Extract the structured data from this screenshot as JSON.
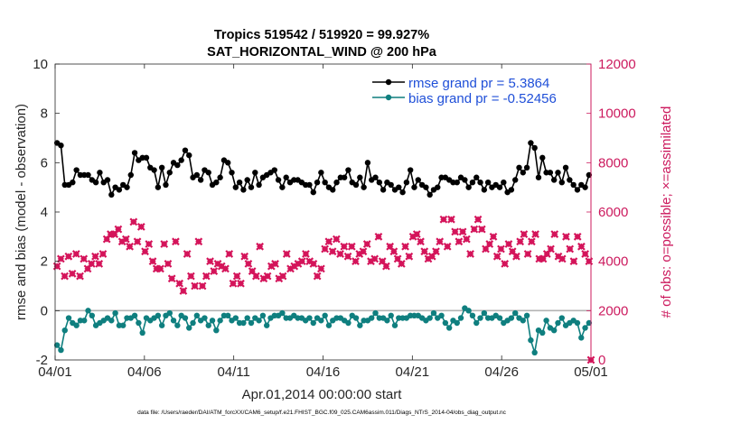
{
  "chart_data": {
    "type": "line",
    "title_line1": "Tropics 519542 / 519920 = 99.927%",
    "title_line2": "SAT_HORIZONTAL_WIND @ 200 hPa",
    "xlabel": "Apr.01,2014 00:00:00 start",
    "ylabel_left": "rmse and bias (model - observation)",
    "ylabel_right": "# of obs: o=possible; ×=assimilated",
    "ylim_left": [
      -2,
      10
    ],
    "ylim_right": [
      0,
      12000
    ],
    "xlim_days": [
      0,
      30
    ],
    "x_tick_labels": [
      "04/01",
      "04/06",
      "04/11",
      "04/16",
      "04/21",
      "04/26",
      "05/01"
    ],
    "y_left_tick_labels": [
      "-2",
      "0",
      "2",
      "4",
      "6",
      "8",
      "10"
    ],
    "y_right_tick_labels": [
      "0",
      "2000",
      "4000",
      "6000",
      "8000",
      "10000",
      "12000"
    ],
    "footer": "data file: /Users/raeder/DAI/ATM_forcXX/CAM6_setup/f.e21.FHIST_BGC.f09_025.CAM6assim.011/Diags_NTrS_2014-04/obs_diag_output.nc",
    "colors": {
      "rmse": "#000000",
      "bias": "#0f7f7f",
      "obs": "#d4145a",
      "axis_right": "#cc1a5e",
      "legend_text": "#1f4fd8",
      "zero_line": "#b3b3b3"
    },
    "series": [
      {
        "name": "rmse grand pr = 5.3864",
        "axis": "left",
        "marker": "dot",
        "values": [
          6.8,
          6.7,
          5.1,
          5.1,
          5.2,
          5.7,
          5.5,
          5.5,
          5.5,
          5.3,
          5.2,
          5.6,
          5.2,
          5.3,
          4.7,
          5.0,
          4.9,
          5.1,
          5.0,
          5.5,
          6.4,
          6.1,
          6.2,
          6.2,
          5.8,
          5.7,
          5.0,
          5.8,
          5.1,
          5.6,
          6.0,
          5.9,
          6.1,
          6.5,
          6.3,
          5.4,
          5.5,
          5.3,
          5.7,
          5.6,
          5.1,
          5.2,
          5.4,
          6.1,
          6.0,
          5.6,
          5.0,
          5.2,
          4.9,
          5.3,
          5.0,
          5.6,
          5.1,
          5.4,
          5.5,
          5.6,
          5.7,
          5.3,
          5.0,
          5.4,
          5.2,
          5.3,
          5.3,
          5.2,
          5.1,
          5.1,
          4.8,
          5.2,
          5.6,
          5.2,
          5.0,
          4.9,
          5.2,
          5.4,
          5.4,
          5.7,
          5.2,
          5.1,
          5.4,
          5.0,
          6.0,
          5.3,
          5.4,
          5.2,
          4.9,
          5.2,
          5.1,
          4.9,
          5.0,
          4.8,
          5.2,
          5.7,
          5.0,
          5.3,
          5.1,
          5.0,
          4.7,
          4.9,
          5.0,
          5.4,
          5.4,
          5.3,
          5.2,
          5.2,
          5.4,
          5.3,
          5.0,
          5.2,
          5.4,
          5.2,
          4.9,
          5.2,
          5.0,
          5.1,
          5.0,
          5.2,
          4.8,
          4.9,
          5.3,
          5.8,
          5.6,
          5.8,
          6.8,
          6.6,
          5.4,
          6.2,
          5.6,
          5.6,
          5.3,
          5.6,
          5.2,
          5.8,
          5.3,
          5.1,
          4.9,
          5.1,
          5.0,
          5.5
        ]
      },
      {
        "name": "bias grand pr = -0.52456",
        "axis": "left",
        "marker": "dot",
        "values": [
          -1.4,
          -1.6,
          -0.8,
          -0.3,
          -0.5,
          -0.6,
          -0.4,
          -0.4,
          0.0,
          -0.2,
          -0.6,
          -0.5,
          -0.4,
          -0.3,
          -0.4,
          -0.1,
          -0.6,
          -0.6,
          -0.3,
          -0.3,
          -0.2,
          -0.5,
          -0.9,
          -0.3,
          -0.4,
          -0.3,
          -0.2,
          -0.6,
          -0.2,
          -0.1,
          -0.4,
          -0.6,
          -0.2,
          -0.3,
          -0.7,
          -0.5,
          -0.2,
          -0.4,
          -0.3,
          -0.6,
          -0.4,
          -0.8,
          -0.4,
          -0.2,
          -0.2,
          -0.4,
          -0.3,
          -0.5,
          -0.5,
          -0.3,
          -0.5,
          -0.3,
          -0.4,
          -0.2,
          -0.6,
          -0.3,
          -0.2,
          -0.2,
          -0.1,
          -0.3,
          -0.3,
          -0.2,
          -0.3,
          -0.3,
          -0.4,
          -0.3,
          -0.5,
          -0.3,
          -0.4,
          -0.2,
          -0.6,
          -0.4,
          -0.3,
          -0.3,
          -0.4,
          -0.5,
          -0.2,
          -0.3,
          -0.6,
          -0.4,
          -0.4,
          -0.3,
          -0.1,
          -0.3,
          -0.3,
          -0.4,
          -0.2,
          -0.6,
          -0.3,
          -0.3,
          -0.3,
          -0.2,
          -0.2,
          -0.2,
          -0.3,
          -0.4,
          -0.3,
          -0.1,
          -0.3,
          -0.2,
          -0.5,
          -0.7,
          -0.4,
          -0.5,
          -0.3,
          0.1,
          0.0,
          -0.2,
          -0.5,
          -0.3,
          -0.1,
          -0.3,
          -0.3,
          -0.2,
          -0.3,
          -0.5,
          -0.4,
          -0.3,
          -0.1,
          -0.3,
          -0.4,
          -0.2,
          -1.2,
          -1.7,
          -0.8,
          -0.9,
          -0.4,
          -0.7,
          -0.8,
          -0.5,
          -0.3,
          -0.6,
          -0.5,
          -0.4,
          -0.5,
          -1.1,
          -0.7,
          -0.5
        ]
      },
      {
        "name": "# obs assimilated",
        "axis": "right",
        "marker": "cross",
        "values": [
          3800,
          4100,
          3400,
          4200,
          3500,
          4300,
          3400,
          4100,
          3700,
          3900,
          4200,
          3900,
          4300,
          4900,
          5100,
          5100,
          5300,
          4800,
          4900,
          4600,
          5600,
          4800,
          5400,
          4400,
          4700,
          4000,
          3700,
          3700,
          4700,
          3900,
          3300,
          4800,
          3100,
          2800,
          4300,
          3400,
          3000,
          4800,
          3000,
          3400,
          4000,
          3600,
          3900,
          3800,
          3700,
          4300,
          3100,
          3400,
          3100,
          4200,
          3900,
          3600,
          3400,
          4600,
          3300,
          3400,
          3800,
          3900,
          3300,
          3400,
          4300,
          3700,
          3800,
          3900,
          4000,
          4300,
          4000,
          3900,
          3400,
          3700,
          4500,
          4800,
          4400,
          4900,
          4300,
          4600,
          4200,
          4600,
          4000,
          4300,
          4400,
          4700,
          4000,
          4100,
          5000,
          4000,
          3800,
          4600,
          4400,
          4100,
          3900,
          4600,
          4200,
          5000,
          5100,
          4800,
          4400,
          4100,
          4200,
          4400,
          4800,
          5700,
          4600,
          5700,
          5200,
          4800,
          5200,
          4900,
          4300,
          5300,
          5700,
          5300,
          4500,
          4700,
          5000,
          4200,
          4500,
          3900,
          4700,
          4400,
          4200,
          4800,
          5100,
          4300,
          4800,
          5100,
          4100,
          4100,
          4300,
          4500,
          5100,
          4200,
          4100,
          5000,
          4500,
          4000,
          5000,
          4600,
          4300,
          4000
        ]
      }
    ],
    "extra_point": {
      "day": 30.0,
      "value": 0
    }
  }
}
